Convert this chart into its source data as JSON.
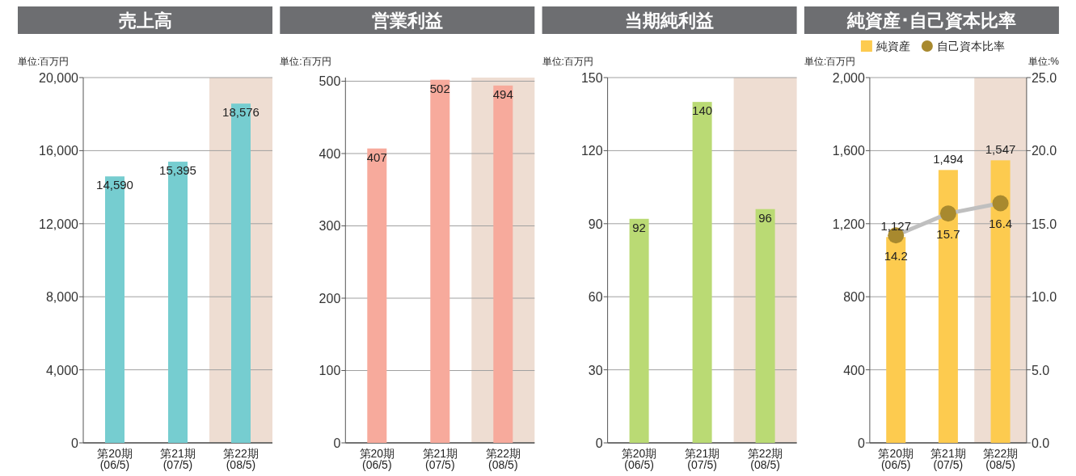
{
  "chart_data": [
    {
      "type": "bar",
      "title": "売上高",
      "ylabel": "単位:百万円",
      "categories": [
        "第20期\n(06/5)",
        "第21期\n(07/5)",
        "第22期\n(08/5)"
      ],
      "values": [
        14590,
        15395,
        18576
      ],
      "value_labels": [
        "14,590",
        "15,395",
        "18,576"
      ],
      "color": "#76cdd0",
      "ylim": [
        0,
        20000
      ],
      "yticks": [
        0,
        {
          "value": 4000,
          "label": "4,000"
        },
        {
          "value": 8000,
          "label": "8,000"
        },
        {
          "value": 12000,
          "label": "12,000"
        },
        {
          "value": 16000,
          "label": "16,000"
        },
        {
          "value": 20000,
          "label": "20,000"
        }
      ],
      "grid": "y",
      "bands": [
        {
          "axis": "x",
          "from": "第22期\n(08/5)",
          "to": "第22期\n(08/5)",
          "color": "#eeddd2"
        }
      ]
    },
    {
      "type": "bar",
      "title": "営業利益",
      "ylabel": "単位:百万円",
      "categories": [
        "第20期\n(06/5)",
        "第21期\n(07/5)",
        "第22期\n(08/5)"
      ],
      "values": [
        407,
        502,
        494
      ],
      "color": "#f7aa9c",
      "data_labels": true,
      "ylim": [
        0,
        505
      ],
      "yticks": [
        0,
        100,
        200,
        300,
        400,
        500
      ],
      "grid": "y",
      "bands": [
        {
          "axis": "x",
          "from": "第22期\n(08/5)",
          "to": "第22期\n(08/5)",
          "color": "#eeddd2"
        }
      ]
    },
    {
      "type": "bar",
      "title": "当期純利益",
      "ylabel": "単位:百万円",
      "categories": [
        "第20期\n(06/5)",
        "第21期\n(07/5)",
        "第22期\n(08/5)"
      ],
      "values": [
        92,
        140,
        96
      ],
      "color": "#bada74",
      "data_labels": true,
      "ylim": [
        0,
        150
      ],
      "yticks": [
        0,
        30,
        60,
        90,
        120,
        150
      ],
      "grid": "y",
      "bands": [
        {
          "axis": "x",
          "from": "第22期\n(08/5)",
          "to": "第22期\n(08/5)",
          "color": "#eeddd2"
        }
      ]
    },
    {
      "type": "bar",
      "title": "純資産･自己資本比率",
      "ylabel": "単位:百万円",
      "y2label": "単位:%",
      "categories": [
        "第20期\n(06/5)",
        "第21期\n(07/5)",
        "第22期\n(08/5)"
      ],
      "series": [
        {
          "name": "純資産",
          "color": "#fdcb4f",
          "values": [
            1127,
            1494,
            1547
          ],
          "value_labels": [
            "1,127",
            "1,494",
            "1,547"
          ]
        },
        {
          "name": "自己資本比率",
          "type": "line",
          "axis": "y2",
          "marker": "circle",
          "color": "#a8892e",
          "values": [
            14.2,
            15.7,
            16.4
          ],
          "value_labels": [
            "14.2",
            "15.7",
            "16.4"
          ]
        }
      ],
      "ylim": [
        0,
        2000
      ],
      "yticks": [
        0,
        400,
        800,
        {
          "value": 1200,
          "label": "1,200"
        },
        {
          "value": 1600,
          "label": "1,600"
        },
        {
          "value": 2000,
          "label": "2,000"
        }
      ],
      "y2lim": [
        0,
        25
      ],
      "y2ticks": [
        {
          "value": 0,
          "label": "0.0"
        },
        {
          "value": 5,
          "label": "5.0"
        },
        {
          "value": 10,
          "label": "10.0"
        },
        {
          "value": 15,
          "label": "15.0"
        },
        {
          "value": 20,
          "label": "20.0"
        },
        {
          "value": 25,
          "label": "25.0"
        }
      ],
      "grid": "y",
      "legend": "top",
      "bands": [
        {
          "axis": "x",
          "from": "第22期\n(08/5)",
          "to": "第22期\n(08/5)",
          "color": "#eeddd2"
        }
      ]
    }
  ]
}
